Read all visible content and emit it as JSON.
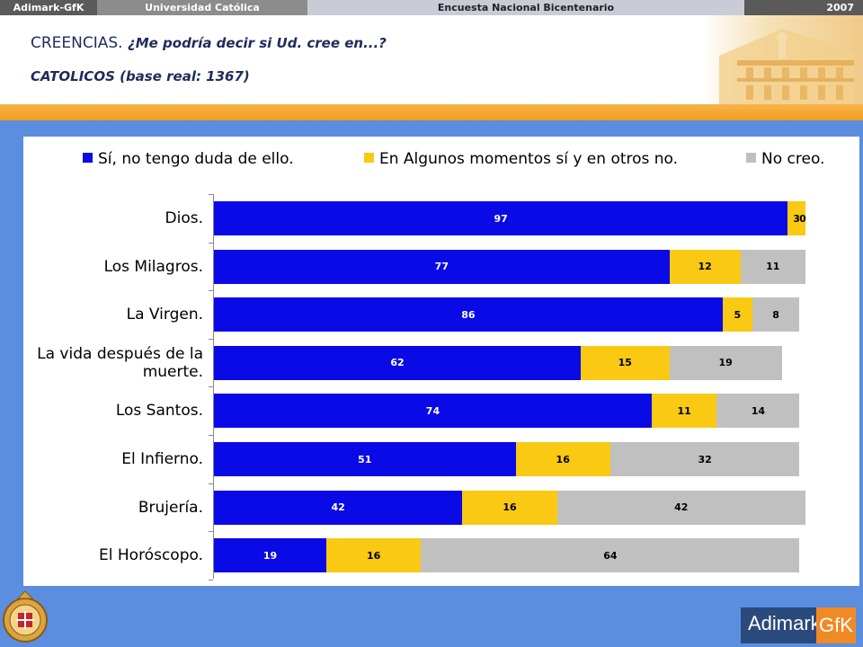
{
  "header": {
    "brand": "Adimark-GfK",
    "university": "Universidad Católica",
    "survey": "Encuesta Nacional Bicentenario",
    "year": "2007"
  },
  "title": {
    "prefix": "CREENCIAS.",
    "question": "¿Me podría decir si Ud. cree en...?",
    "subtitle": "CATOLICOS (base real: 1367)"
  },
  "logos": {
    "adimark_text": "Adimark",
    "gfk_text": "GfK"
  },
  "colors": {
    "blue": "#0a0ae6",
    "yellow": "#f9c913",
    "gray": "#c0c0c0",
    "background": "#5b8ede",
    "orange": "#f39c1e"
  },
  "chart_data": {
    "type": "bar",
    "orientation": "horizontal",
    "stacked": true,
    "legend_position": "top",
    "xlim": [
      0,
      100
    ],
    "categories": [
      "Dios.",
      "Los Milagros.",
      "La Virgen.",
      "La vida después de la muerte.",
      "Los Santos.",
      "El Infierno.",
      "Brujería.",
      "El Horóscopo."
    ],
    "series": [
      {
        "name": "Sí, no tengo duda de ello.",
        "color": "#0a0ae6",
        "values": [
          97,
          77,
          86,
          62,
          74,
          51,
          42,
          19
        ],
        "labels": [
          "97",
          "77",
          "86",
          "62",
          "74",
          "51",
          "42",
          "19"
        ]
      },
      {
        "name": "En Algunos momentos sí y en otros no.",
        "color": "#f9c913",
        "values": [
          3,
          12,
          5,
          15,
          11,
          16,
          16,
          16
        ],
        "labels": [
          "3",
          "12",
          "5",
          "15",
          "11",
          "16",
          "16",
          "16"
        ]
      },
      {
        "name": "No creo.",
        "color": "#c0c0c0",
        "values": [
          0,
          11,
          8,
          19,
          14,
          32,
          42,
          64
        ],
        "labels": [
          "0",
          "11",
          "8",
          "19",
          "14",
          "32",
          "42",
          "64"
        ]
      }
    ]
  }
}
